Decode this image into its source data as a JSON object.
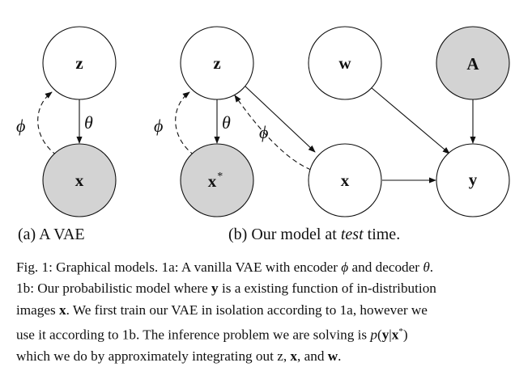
{
  "nodes": {
    "a_z": "z",
    "a_x": "x",
    "b_z": "z",
    "b_xstar": "x",
    "b_xstar_sup": "*",
    "b_w": "w",
    "b_A": "A",
    "b_x": "x",
    "b_y": "y"
  },
  "edge_labels": {
    "a_phi": "ϕ",
    "a_theta": "θ",
    "b_phi_left": "ϕ",
    "b_theta": "θ",
    "b_phi_diag": "ϕ"
  },
  "subcaptions": {
    "a": "(a) A VAE",
    "b_prefix": "(b) Our model at ",
    "b_italic": "test",
    "b_suffix": " time."
  },
  "caption": {
    "l1_a": "Fig. 1: Graphical models. 1a: A vanilla VAE with encoder ",
    "l1_phi": "ϕ",
    "l1_b": " and decoder ",
    "l1_theta": "θ",
    "l1_c": ".",
    "l2_a": "1b: Our probabilistic model where ",
    "l2_y": "y",
    "l2_b": " is a existing function of in-distribution",
    "l3_a": "images ",
    "l3_x": "x",
    "l3_b": ". We first train our VAE in isolation according to 1a, however we",
    "l4": "use it according to 1b. The inference problem we are solving is ",
    "l4_p": "p",
    "l4_open": "(",
    "l4_y": "y",
    "l4_bar": "|",
    "l4_x": "x",
    "l4_star": "*",
    "l4_close": ")",
    "l5_a": "which we do by approximately integrating out z, ",
    "l5_x": "x",
    "l5_b": ", and ",
    "l5_w": "w",
    "l5_c": "."
  }
}
